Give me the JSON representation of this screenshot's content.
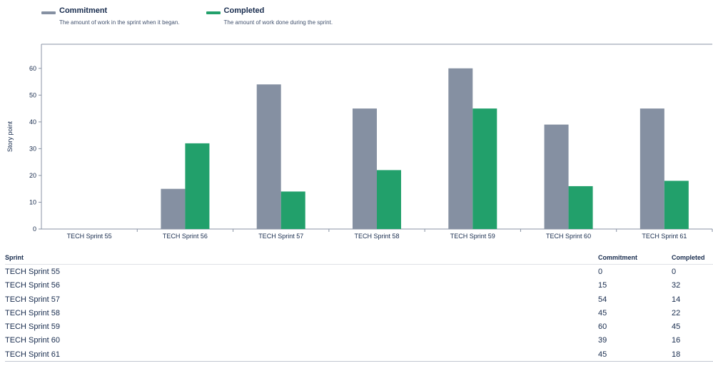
{
  "legend": [
    {
      "title": "Commitment",
      "description": "The amount of work in the sprint when it began.",
      "color": "#8590a2"
    },
    {
      "title": "Completed",
      "description": "The amount of work done during the sprint.",
      "color": "#22a06b"
    }
  ],
  "chart_data": {
    "type": "bar",
    "categories": [
      "TECH Sprint 55",
      "TECH Sprint 56",
      "TECH Sprint 57",
      "TECH Sprint 58",
      "TECH Sprint 59",
      "TECH Sprint 60",
      "TECH Sprint 61"
    ],
    "series": [
      {
        "name": "Commitment",
        "values": [
          0,
          15,
          54,
          45,
          60,
          39,
          45
        ],
        "color": "#8590a2"
      },
      {
        "name": "Completed",
        "values": [
          0,
          32,
          14,
          22,
          45,
          16,
          18
        ],
        "color": "#22a06b"
      }
    ],
    "title": "",
    "xlabel": "",
    "ylabel": "Story point",
    "ylim": [
      0,
      69
    ],
    "yticks": [
      0,
      10,
      20,
      30,
      40,
      50,
      60
    ],
    "grid": false
  },
  "table": {
    "headers": {
      "sprint": "Sprint",
      "commitment": "Commitment",
      "completed": "Completed"
    },
    "rows": [
      {
        "sprint": "TECH Sprint 55",
        "commitment": "0",
        "completed": "0"
      },
      {
        "sprint": "TECH Sprint 56",
        "commitment": "15",
        "completed": "32"
      },
      {
        "sprint": "TECH Sprint 57",
        "commitment": "54",
        "completed": "14"
      },
      {
        "sprint": "TECH Sprint 58",
        "commitment": "45",
        "completed": "22"
      },
      {
        "sprint": "TECH Sprint 59",
        "commitment": "60",
        "completed": "45"
      },
      {
        "sprint": "TECH Sprint 60",
        "commitment": "39",
        "completed": "16"
      },
      {
        "sprint": "TECH Sprint 61",
        "commitment": "45",
        "completed": "18"
      }
    ]
  }
}
